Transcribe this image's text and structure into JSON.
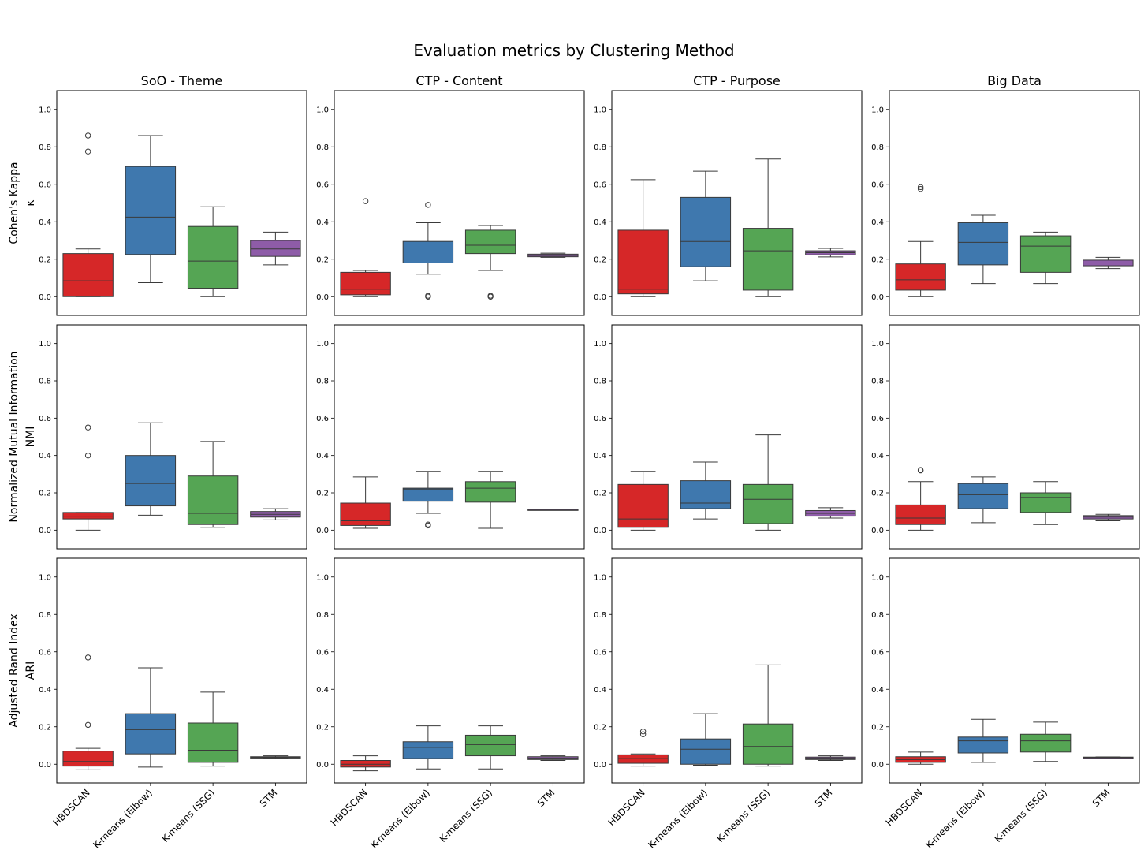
{
  "chart_data": {
    "type": "box",
    "title": "Evaluation metrics by Clustering Method",
    "categories": [
      "HBDSCAN",
      "K-means (Elbow)",
      "K-means (SSG)",
      "STM"
    ],
    "colors": [
      "#d62728",
      "#3f78ae",
      "#55a554",
      "#8e5ca8"
    ],
    "columns": [
      "SoO - Theme",
      "CTP - Content",
      "CTP - Purpose",
      "Big Data"
    ],
    "rows": [
      {
        "ylabel": "Cohen's Kappa",
        "symbol": "κ"
      },
      {
        "ylabel": "Normalized Mutual Information",
        "symbol": "NMI"
      },
      {
        "ylabel": "Adjusted Rand Index",
        "symbol": "ARI"
      }
    ],
    "ylim": [
      -0.1,
      1.1
    ],
    "yticks": [
      "0.0",
      "0.2",
      "0.4",
      "0.6",
      "0.8",
      "1.0"
    ],
    "panels": [
      [
        {
          "boxes": [
            {
              "whislo": 0.0,
              "q1": 0.0,
              "med": 0.085,
              "q3": 0.23,
              "whishi": 0.255,
              "fliers": [
                0.775,
                0.86
              ]
            },
            {
              "whislo": 0.075,
              "q1": 0.225,
              "med": 0.425,
              "q3": 0.695,
              "whishi": 0.86,
              "fliers": []
            },
            {
              "whislo": 0.0,
              "q1": 0.045,
              "med": 0.19,
              "q3": 0.375,
              "whishi": 0.48,
              "fliers": []
            },
            {
              "whislo": 0.17,
              "q1": 0.215,
              "med": 0.255,
              "q3": 0.3,
              "whishi": 0.345,
              "fliers": []
            }
          ]
        },
        {
          "boxes": [
            {
              "whislo": 0.0,
              "q1": 0.01,
              "med": 0.04,
              "q3": 0.13,
              "whishi": 0.14,
              "fliers": [
                0.51
              ]
            },
            {
              "whislo": 0.12,
              "q1": 0.18,
              "med": 0.26,
              "q3": 0.295,
              "whishi": 0.395,
              "fliers": [
                0.0,
                0.005,
                0.49
              ]
            },
            {
              "whislo": 0.14,
              "q1": 0.23,
              "med": 0.275,
              "q3": 0.355,
              "whishi": 0.38,
              "fliers": [
                0.0,
                0.005
              ]
            },
            {
              "whislo": 0.21,
              "q1": 0.213,
              "med": 0.22,
              "q3": 0.227,
              "whishi": 0.232,
              "fliers": []
            }
          ]
        },
        {
          "boxes": [
            {
              "whislo": 0.0,
              "q1": 0.015,
              "med": 0.04,
              "q3": 0.355,
              "whishi": 0.625,
              "fliers": []
            },
            {
              "whislo": 0.085,
              "q1": 0.16,
              "med": 0.295,
              "q3": 0.53,
              "whishi": 0.67,
              "fliers": []
            },
            {
              "whislo": 0.0,
              "q1": 0.035,
              "med": 0.245,
              "q3": 0.365,
              "whishi": 0.735,
              "fliers": []
            },
            {
              "whislo": 0.212,
              "q1": 0.223,
              "med": 0.235,
              "q3": 0.245,
              "whishi": 0.258,
              "fliers": []
            }
          ]
        },
        {
          "boxes": [
            {
              "whislo": 0.0,
              "q1": 0.035,
              "med": 0.09,
              "q3": 0.175,
              "whishi": 0.295,
              "fliers": [
                0.575,
                0.585
              ]
            },
            {
              "whislo": 0.07,
              "q1": 0.17,
              "med": 0.29,
              "q3": 0.395,
              "whishi": 0.435,
              "fliers": []
            },
            {
              "whislo": 0.07,
              "q1": 0.13,
              "med": 0.27,
              "q3": 0.325,
              "whishi": 0.345,
              "fliers": []
            },
            {
              "whislo": 0.15,
              "q1": 0.165,
              "med": 0.18,
              "q3": 0.195,
              "whishi": 0.21,
              "fliers": []
            }
          ]
        }
      ],
      [
        {
          "boxes": [
            {
              "whislo": 0.0,
              "q1": 0.06,
              "med": 0.075,
              "q3": 0.095,
              "whishi": 0.095,
              "fliers": [
                0.4,
                0.55
              ]
            },
            {
              "whislo": 0.08,
              "q1": 0.13,
              "med": 0.25,
              "q3": 0.4,
              "whishi": 0.575,
              "fliers": []
            },
            {
              "whislo": 0.015,
              "q1": 0.03,
              "med": 0.09,
              "q3": 0.29,
              "whishi": 0.475,
              "fliers": []
            },
            {
              "whislo": 0.055,
              "q1": 0.07,
              "med": 0.085,
              "q3": 0.1,
              "whishi": 0.115,
              "fliers": []
            }
          ]
        },
        {
          "boxes": [
            {
              "whislo": 0.01,
              "q1": 0.025,
              "med": 0.05,
              "q3": 0.145,
              "whishi": 0.285,
              "fliers": []
            },
            {
              "whislo": 0.09,
              "q1": 0.155,
              "med": 0.22,
              "q3": 0.225,
              "whishi": 0.315,
              "fliers": [
                0.025,
                0.03
              ]
            },
            {
              "whislo": 0.01,
              "q1": 0.15,
              "med": 0.225,
              "q3": 0.26,
              "whishi": 0.315,
              "fliers": []
            },
            {
              "whislo": 0.11,
              "q1": 0.11,
              "med": 0.11,
              "q3": 0.112,
              "whishi": 0.112,
              "fliers": []
            }
          ]
        },
        {
          "boxes": [
            {
              "whislo": 0.0,
              "q1": 0.015,
              "med": 0.06,
              "q3": 0.245,
              "whishi": 0.315,
              "fliers": []
            },
            {
              "whislo": 0.06,
              "q1": 0.115,
              "med": 0.145,
              "q3": 0.265,
              "whishi": 0.365,
              "fliers": []
            },
            {
              "whislo": 0.0,
              "q1": 0.035,
              "med": 0.165,
              "q3": 0.245,
              "whishi": 0.51,
              "fliers": []
            },
            {
              "whislo": 0.065,
              "q1": 0.075,
              "med": 0.09,
              "q3": 0.105,
              "whishi": 0.12,
              "fliers": []
            }
          ]
        },
        {
          "boxes": [
            {
              "whislo": 0.0,
              "q1": 0.03,
              "med": 0.065,
              "q3": 0.135,
              "whishi": 0.26,
              "fliers": [
                0.32,
                0.322
              ]
            },
            {
              "whislo": 0.04,
              "q1": 0.115,
              "med": 0.19,
              "q3": 0.25,
              "whishi": 0.285,
              "fliers": []
            },
            {
              "whislo": 0.03,
              "q1": 0.095,
              "med": 0.175,
              "q3": 0.2,
              "whishi": 0.26,
              "fliers": []
            },
            {
              "whislo": 0.05,
              "q1": 0.06,
              "med": 0.07,
              "q3": 0.078,
              "whishi": 0.085,
              "fliers": []
            }
          ]
        }
      ],
      [
        {
          "boxes": [
            {
              "whislo": -0.03,
              "q1": -0.01,
              "med": 0.015,
              "q3": 0.07,
              "whishi": 0.085,
              "fliers": [
                0.21,
                0.57
              ]
            },
            {
              "whislo": -0.015,
              "q1": 0.055,
              "med": 0.185,
              "q3": 0.27,
              "whishi": 0.515,
              "fliers": []
            },
            {
              "whislo": -0.01,
              "q1": 0.01,
              "med": 0.075,
              "q3": 0.22,
              "whishi": 0.385,
              "fliers": []
            },
            {
              "whislo": 0.03,
              "q1": 0.033,
              "med": 0.037,
              "q3": 0.04,
              "whishi": 0.045,
              "fliers": []
            }
          ]
        },
        {
          "boxes": [
            {
              "whislo": -0.035,
              "q1": -0.015,
              "med": 0.0,
              "q3": 0.02,
              "whishi": 0.045,
              "fliers": []
            },
            {
              "whislo": -0.025,
              "q1": 0.03,
              "med": 0.09,
              "q3": 0.12,
              "whishi": 0.205,
              "fliers": []
            },
            {
              "whislo": -0.025,
              "q1": 0.045,
              "med": 0.105,
              "q3": 0.155,
              "whishi": 0.205,
              "fliers": []
            },
            {
              "whislo": 0.02,
              "q1": 0.025,
              "med": 0.032,
              "q3": 0.04,
              "whishi": 0.045,
              "fliers": []
            }
          ]
        },
        {
          "boxes": [
            {
              "whislo": -0.01,
              "q1": 0.005,
              "med": 0.03,
              "q3": 0.05,
              "whishi": 0.055,
              "fliers": [
                0.16,
                0.175
              ]
            },
            {
              "whislo": -0.005,
              "q1": 0.0,
              "med": 0.08,
              "q3": 0.135,
              "whishi": 0.27,
              "fliers": []
            },
            {
              "whislo": -0.01,
              "q1": 0.0,
              "med": 0.095,
              "q3": 0.215,
              "whishi": 0.53,
              "fliers": []
            },
            {
              "whislo": 0.02,
              "q1": 0.025,
              "med": 0.032,
              "q3": 0.038,
              "whishi": 0.045,
              "fliers": []
            }
          ]
        },
        {
          "boxes": [
            {
              "whislo": 0.0,
              "q1": 0.01,
              "med": 0.025,
              "q3": 0.04,
              "whishi": 0.065,
              "fliers": []
            },
            {
              "whislo": 0.01,
              "q1": 0.06,
              "med": 0.125,
              "q3": 0.145,
              "whishi": 0.24,
              "fliers": []
            },
            {
              "whislo": 0.015,
              "q1": 0.065,
              "med": 0.125,
              "q3": 0.16,
              "whishi": 0.225,
              "fliers": []
            },
            {
              "whislo": 0.035,
              "q1": 0.036,
              "med": 0.037,
              "q3": 0.038,
              "whishi": 0.039,
              "fliers": []
            }
          ]
        }
      ]
    ]
  }
}
